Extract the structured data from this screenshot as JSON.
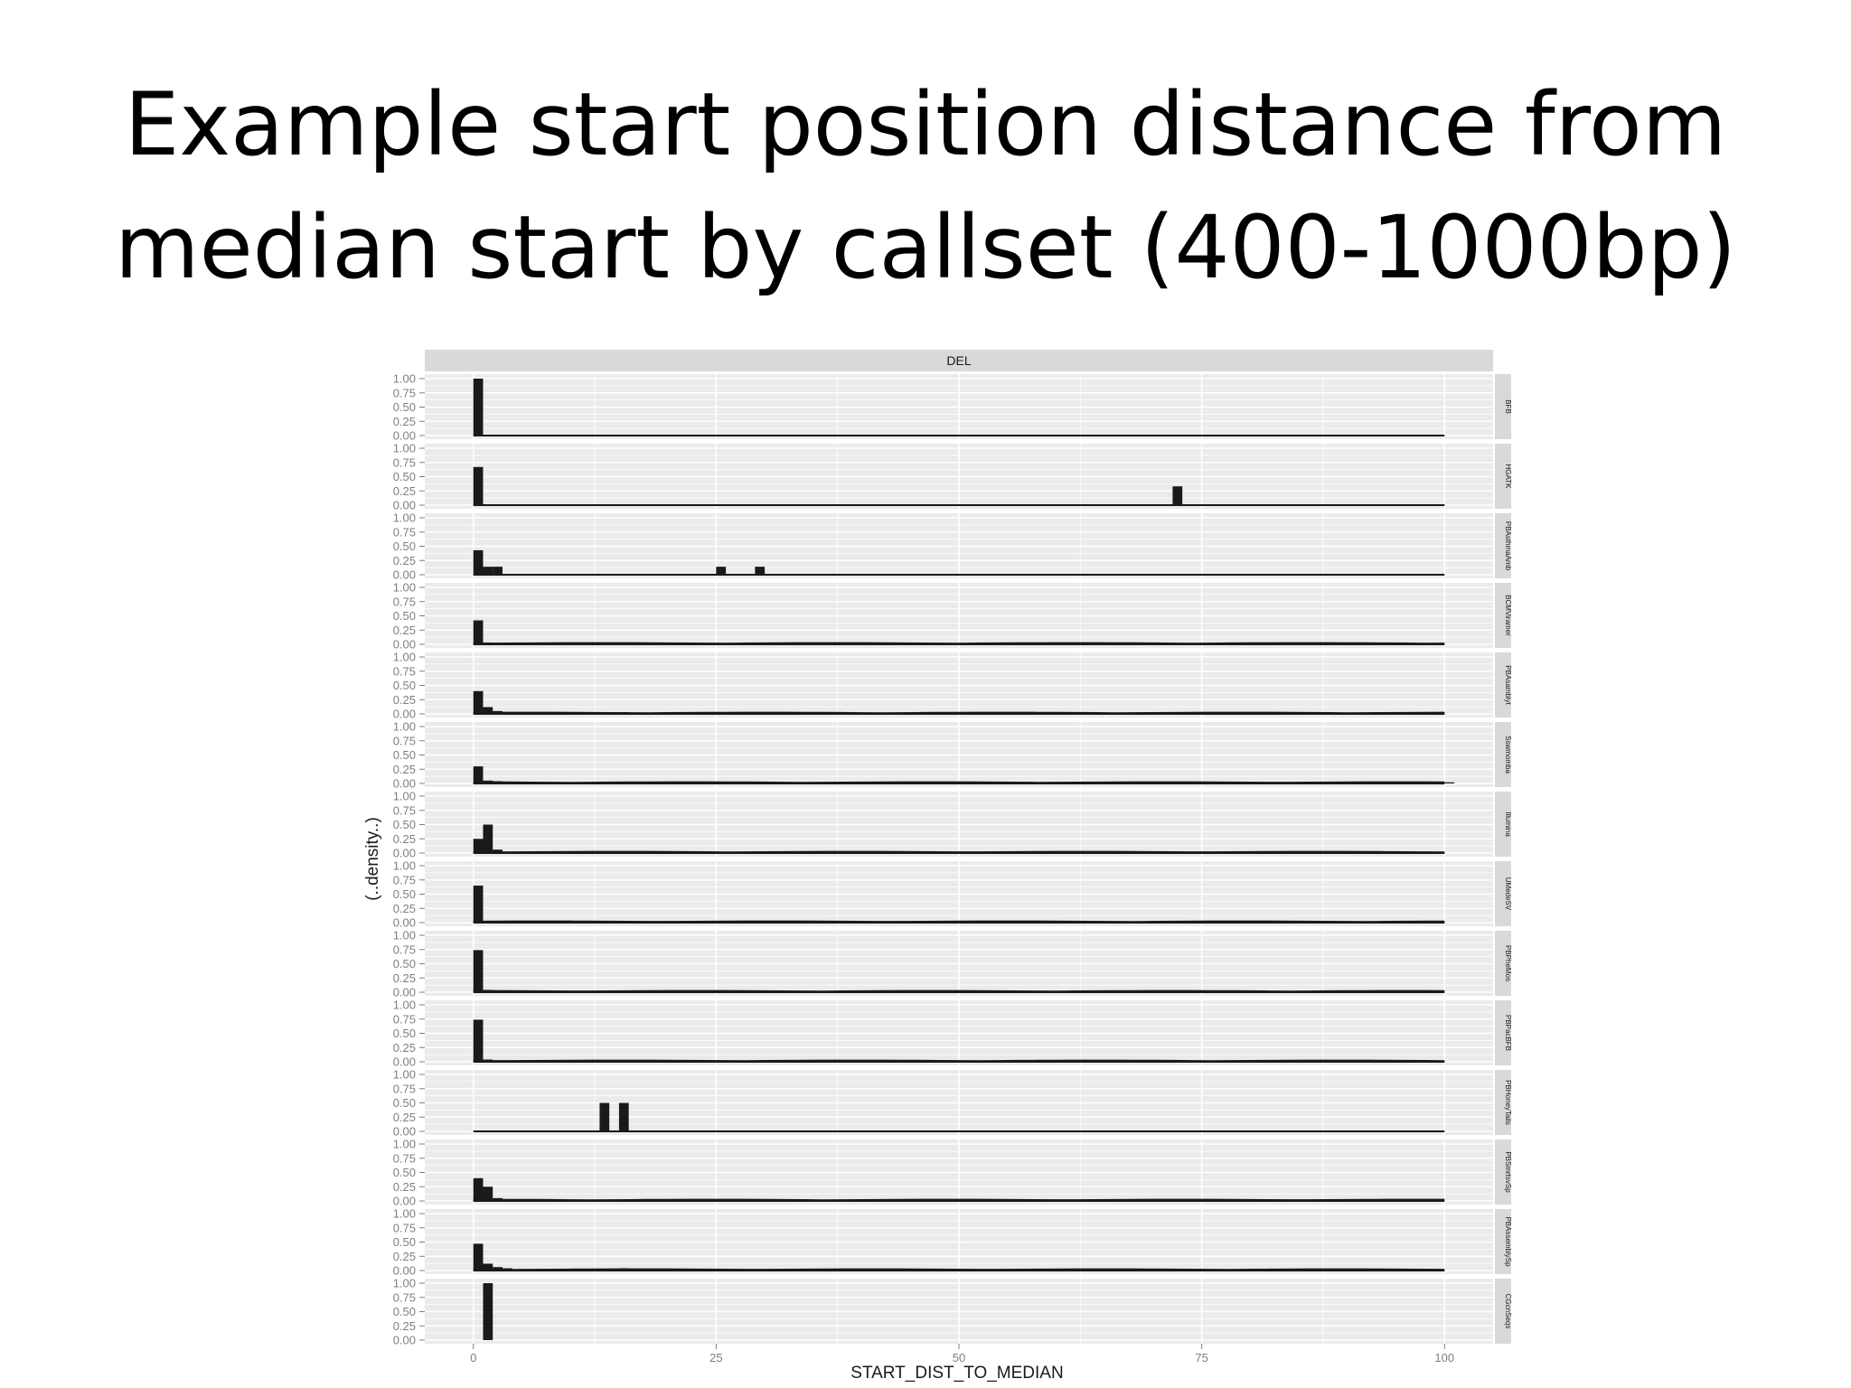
{
  "slide": {
    "title_line1": "Example start position distance from",
    "title_line2": "median start by callset (400-1000bp)"
  },
  "chart_data": {
    "type": "bar",
    "facet_column_label": "DEL",
    "xlabel": "START_DIST_TO_MEDIAN",
    "ylabel": "(..density..)",
    "xlim": [
      -5,
      105
    ],
    "ylim": [
      0,
      1
    ],
    "x_ticks": [
      0,
      25,
      50,
      75,
      100
    ],
    "y_ticks": [
      0.0,
      0.25,
      0.5,
      0.75,
      1.0
    ],
    "y_tick_labels": [
      "0.00",
      "0.25",
      "0.50",
      "0.75",
      "1.00"
    ],
    "bin_width": 1,
    "colors": {
      "panel_bg": "#ebebeb",
      "strip_bg": "#d9d9d9",
      "grid": "#ffffff",
      "bar": "#1a1a1a",
      "axis_text": "#7f7f7f",
      "label": "#1a1a1a"
    },
    "panels": [
      {
        "label": "BFB",
        "baseline_end": 100,
        "low_tail": false,
        "bars": [
          [
            0,
            1.0
          ]
        ]
      },
      {
        "label": "HGATK",
        "baseline_end": 100,
        "low_tail": false,
        "bars": [
          [
            0,
            0.67
          ],
          [
            72,
            0.33
          ]
        ]
      },
      {
        "label": "PBAsthmaAmb",
        "baseline_end": 100,
        "low_tail": false,
        "bars": [
          [
            0,
            0.43
          ],
          [
            1,
            0.14
          ],
          [
            2,
            0.14
          ],
          [
            25,
            0.14
          ],
          [
            29,
            0.14
          ]
        ]
      },
      {
        "label": "BCMViramer",
        "baseline_end": 100,
        "low_tail": true,
        "bars": [
          [
            0,
            0.42
          ],
          [
            1,
            0.03
          ],
          [
            2,
            0.02
          ],
          [
            4,
            0.03
          ],
          [
            15,
            0.02
          ]
        ]
      },
      {
        "label": "PBAsamblyt",
        "baseline_end": 100,
        "low_tail": true,
        "bars": [
          [
            0,
            0.4
          ],
          [
            1,
            0.12
          ],
          [
            2,
            0.05
          ],
          [
            3,
            0.03
          ],
          [
            15,
            0.03
          ]
        ]
      },
      {
        "label": "Sswmomba",
        "baseline_end": 100,
        "low_tail": true,
        "bars": [
          [
            0,
            0.3
          ],
          [
            1,
            0.05
          ],
          [
            2,
            0.04
          ],
          [
            4,
            0.03
          ],
          [
            100,
            0.02
          ]
        ]
      },
      {
        "label": "Illumina",
        "baseline_end": 100,
        "low_tail": true,
        "bars": [
          [
            0,
            0.25
          ],
          [
            1,
            0.5
          ],
          [
            2,
            0.06
          ],
          [
            4,
            0.02
          ]
        ]
      },
      {
        "label": "UMedeSV",
        "baseline_end": 100,
        "low_tail": true,
        "bars": [
          [
            0,
            0.65
          ],
          [
            1,
            0.03
          ],
          [
            3,
            0.02
          ]
        ]
      },
      {
        "label": "PBPheMos",
        "baseline_end": 100,
        "low_tail": true,
        "bars": [
          [
            0,
            0.74
          ],
          [
            1,
            0.04
          ]
        ]
      },
      {
        "label": "PBPacBFB",
        "baseline_end": 100,
        "low_tail": true,
        "bars": [
          [
            0,
            0.74
          ],
          [
            1,
            0.04
          ]
        ]
      },
      {
        "label": "PBHoneyTails",
        "baseline_end": 100,
        "low_tail": false,
        "bars": [
          [
            13,
            0.5
          ],
          [
            15,
            0.5
          ]
        ]
      },
      {
        "label": "PBSmrtsvSp",
        "baseline_end": 100,
        "low_tail": true,
        "bars": [
          [
            0,
            0.4
          ],
          [
            1,
            0.25
          ],
          [
            2,
            0.05
          ],
          [
            14,
            0.02
          ],
          [
            38,
            0.02
          ]
        ]
      },
      {
        "label": "PBAssemblySp",
        "baseline_end": 100,
        "low_tail": true,
        "bars": [
          [
            0,
            0.47
          ],
          [
            1,
            0.12
          ],
          [
            2,
            0.06
          ],
          [
            3,
            0.04
          ],
          [
            15,
            0.04
          ]
        ]
      },
      {
        "label": "CGcnSeqs",
        "baseline_end": null,
        "low_tail": false,
        "bars": [
          [
            1,
            1.0
          ]
        ]
      }
    ]
  }
}
